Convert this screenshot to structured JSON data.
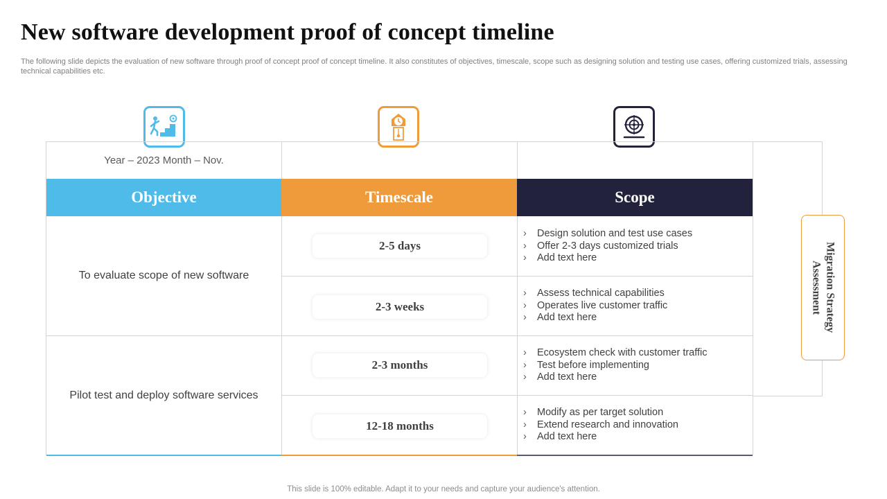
{
  "title": "New software development proof of concept timeline",
  "subtitle": "The following slide depicts the evaluation of new software through proof of concept proof of concept timeline. It also constitutes of objectives, timescale, scope such as designing solution and testing use cases, offering customized trials, assessing technical capabilities etc.",
  "icons": [
    "staircase-goal-icon",
    "clock-tower-icon",
    "target-icon"
  ],
  "year_label": "Year – 2023 Month – Nov.",
  "headers": {
    "objective": "Objective",
    "timescale": "Timescale",
    "scope": "Scope"
  },
  "objectives": [
    "To evaluate scope of new software",
    "Pilot test and deploy software services"
  ],
  "timescales": [
    "2-5 days",
    "2-3 weeks",
    "2-3 months",
    "12-18 months"
  ],
  "scope_bullet": "›",
  "scopes": [
    [
      "Design solution and test use cases",
      "Offer 2-3 days customized trials",
      "Add text here"
    ],
    [
      "Assess technical capabilities",
      "Operates live customer traffic",
      "Add text here"
    ],
    [
      "Ecosystem check with customer traffic",
      "Test before implementing",
      "Add text here"
    ],
    [
      "Modify as per target solution",
      "Extend research and innovation",
      "Add text here"
    ]
  ],
  "side_tab": "Migration Strategy Assessment",
  "footer": "This slide is 100% editable. Adapt it to your needs and capture your audience's attention.",
  "colors": {
    "objective": "#4fbbe9",
    "timescale": "#ef9a3b",
    "scope": "#23223c"
  }
}
